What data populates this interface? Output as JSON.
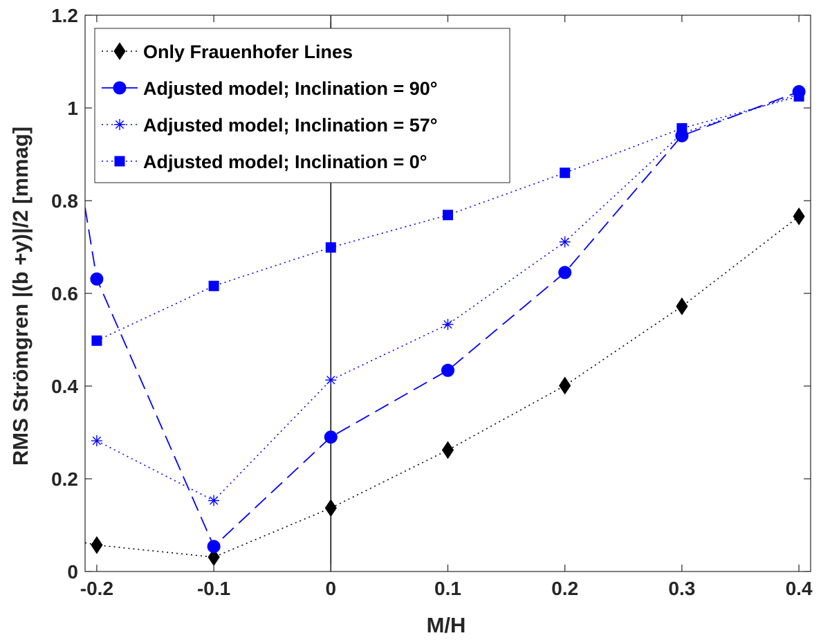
{
  "chart_data": {
    "type": "line",
    "xlabel": "M/H",
    "ylabel": "RMS Strömgren |(b +y)|/2 [mmag]",
    "xlim": [
      -0.21,
      0.41
    ],
    "ylim": [
      0,
      1.2
    ],
    "x_ticks": [
      -0.2,
      -0.1,
      0,
      0.1,
      0.2,
      0.3,
      0.4
    ],
    "x_tick_labels": [
      "-0.2",
      "-0.1",
      "0",
      "0.1",
      "0.2",
      "0.3",
      "0.4"
    ],
    "y_ticks": [
      0,
      0.2,
      0.4,
      0.6,
      0.8,
      1,
      1.2
    ],
    "y_tick_labels": [
      "0",
      "0.2",
      "0.4",
      "0.6",
      "0.8",
      "1",
      "1.2"
    ],
    "vertical_reference_line_x": 0,
    "grid": false,
    "legend_position": "top-left",
    "series": [
      {
        "name": "Only Frauenhofer Lines",
        "color": "#000000",
        "line_style": "dotted",
        "marker": "diamond",
        "x": [
          -0.2,
          -0.1,
          0,
          0.1,
          0.2,
          0.3,
          0.4
        ],
        "values": [
          0.057,
          0.031,
          0.137,
          0.262,
          0.401,
          0.572,
          0.766
        ],
        "line_start": [
          -0.21,
          0.062
        ]
      },
      {
        "name": "Adjusted model; Inclination = 90°",
        "color": "#0000ff",
        "line_style": "dashed",
        "marker": "circle",
        "x": [
          -0.2,
          -0.1,
          0,
          0.1,
          0.2,
          0.3,
          0.4
        ],
        "values": [
          0.631,
          0.054,
          0.29,
          0.434,
          0.645,
          0.94,
          1.035
        ],
        "line_start": [
          -0.21,
          0.785
        ]
      },
      {
        "name": "Adjusted model; Inclination = 57°",
        "color": "#0000ff",
        "line_style": "dotted",
        "marker": "asterisk",
        "x": [
          -0.2,
          -0.1,
          0,
          0.1,
          0.2,
          0.3,
          0.4
        ],
        "values": [
          0.282,
          0.153,
          0.413,
          0.533,
          0.711,
          0.945,
          1.03
        ]
      },
      {
        "name": "Adjusted model; Inclination = 0°",
        "color": "#0000ff",
        "line_style": "dotted",
        "marker": "square",
        "x": [
          -0.2,
          -0.1,
          0,
          0.1,
          0.2,
          0.3,
          0.4
        ],
        "values": [
          0.498,
          0.616,
          0.699,
          0.769,
          0.86,
          0.956,
          1.025
        ]
      }
    ]
  }
}
